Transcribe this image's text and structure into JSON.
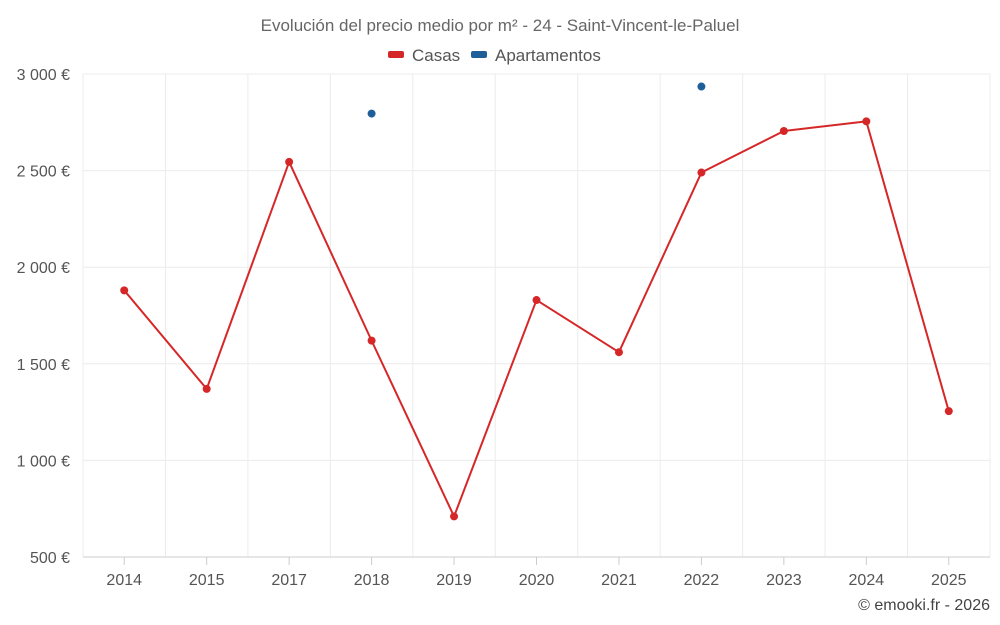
{
  "chart_data": {
    "type": "line",
    "title": "Evolución del precio medio por m² - 24 - Saint-Vincent-le-Paluel",
    "categories": [
      "2014",
      "2015",
      "2017",
      "2018",
      "2019",
      "2020",
      "2021",
      "2022",
      "2023",
      "2024",
      "2025"
    ],
    "ylim": [
      500,
      3000
    ],
    "y_ticks": [
      500,
      1000,
      1500,
      2000,
      2500,
      3000
    ],
    "y_tick_labels": [
      "500 €",
      "1 000 €",
      "1 500 €",
      "2 000 €",
      "2 500 €",
      "3 000 €"
    ],
    "grid": true,
    "legend_position": "top-center",
    "series": [
      {
        "name": "Casas",
        "color": "#d62728",
        "values": [
          1880,
          1370,
          2545,
          1620,
          710,
          1830,
          1560,
          2490,
          2705,
          2755,
          1255
        ]
      },
      {
        "name": "Apartamentos",
        "color": "#1f5f99",
        "values": [
          null,
          null,
          null,
          2795,
          null,
          null,
          null,
          2935,
          null,
          null,
          null
        ]
      }
    ],
    "credit": "© emooki.fr - 2026"
  }
}
